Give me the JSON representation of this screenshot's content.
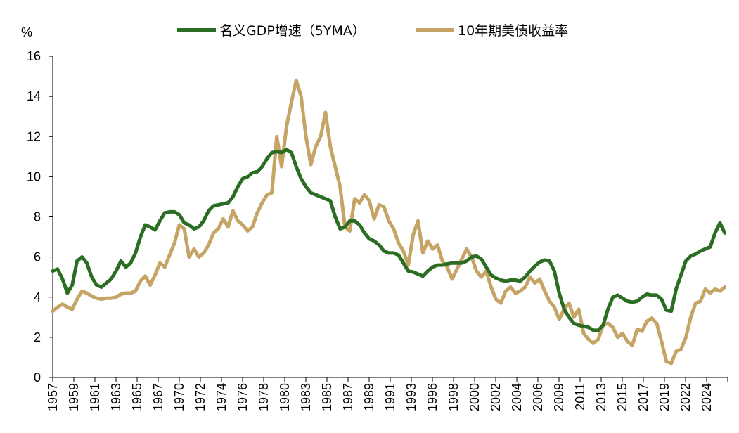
{
  "chart_data": {
    "type": "line",
    "y_unit": "%",
    "ylim": [
      0,
      16
    ],
    "y_ticks": [
      0,
      2,
      4,
      6,
      8,
      10,
      12,
      14,
      16
    ],
    "xlim": [
      1957,
      2026.3
    ],
    "x_tick_labels": [
      "1957",
      "1959",
      "1961",
      "1963",
      "1965",
      "1967",
      "1970",
      "1972",
      "1974",
      "1976",
      "1978",
      "1980",
      "1983",
      "1985",
      "1987",
      "1989",
      "1991",
      "1993",
      "1996",
      "1998",
      "2000",
      "2002",
      "2004",
      "2006",
      "2009",
      "2011",
      "2013",
      "2015",
      "2017",
      "2019",
      "2022",
      "2024"
    ],
    "grid": false,
    "legend_position": "top",
    "series": [
      {
        "name": "名义GDP增速（5YMA）",
        "color": "#2b6e23",
        "points": [
          [
            1957,
            5.3
          ],
          [
            1957.5,
            5.4
          ],
          [
            1958,
            4.9
          ],
          [
            1958.5,
            4.2
          ],
          [
            1959,
            4.6
          ],
          [
            1959.5,
            5.8
          ],
          [
            1960,
            6.0
          ],
          [
            1960.5,
            5.7
          ],
          [
            1961,
            5.0
          ],
          [
            1961.5,
            4.6
          ],
          [
            1962,
            4.5
          ],
          [
            1962.5,
            4.7
          ],
          [
            1963,
            4.9
          ],
          [
            1963.5,
            5.3
          ],
          [
            1964,
            5.8
          ],
          [
            1964.5,
            5.5
          ],
          [
            1965,
            5.7
          ],
          [
            1965.5,
            6.2
          ],
          [
            1966,
            7.0
          ],
          [
            1966.5,
            7.6
          ],
          [
            1967,
            7.5
          ],
          [
            1967.5,
            7.35
          ],
          [
            1968,
            7.8
          ],
          [
            1968.5,
            8.2
          ],
          [
            1969,
            8.25
          ],
          [
            1969.5,
            8.25
          ],
          [
            1970,
            8.1
          ],
          [
            1970.5,
            7.7
          ],
          [
            1971,
            7.6
          ],
          [
            1971.5,
            7.4
          ],
          [
            1972,
            7.5
          ],
          [
            1972.5,
            7.8
          ],
          [
            1973,
            8.3
          ],
          [
            1973.5,
            8.55
          ],
          [
            1974,
            8.6
          ],
          [
            1974.5,
            8.65
          ],
          [
            1975,
            8.7
          ],
          [
            1975.5,
            9.0
          ],
          [
            1976,
            9.5
          ],
          [
            1976.5,
            9.9
          ],
          [
            1977,
            10.0
          ],
          [
            1977.5,
            10.2
          ],
          [
            1978,
            10.25
          ],
          [
            1978.5,
            10.5
          ],
          [
            1979,
            10.9
          ],
          [
            1979.5,
            11.2
          ],
          [
            1980,
            11.25
          ],
          [
            1980.5,
            11.2
          ],
          [
            1981,
            11.35
          ],
          [
            1981.5,
            11.2
          ],
          [
            1982,
            10.5
          ],
          [
            1982.5,
            9.9
          ],
          [
            1983,
            9.5
          ],
          [
            1983.5,
            9.2
          ],
          [
            1984,
            9.1
          ],
          [
            1984.5,
            9.0
          ],
          [
            1985,
            8.9
          ],
          [
            1985.5,
            8.8
          ],
          [
            1986,
            8.0
          ],
          [
            1986.5,
            7.4
          ],
          [
            1987,
            7.5
          ],
          [
            1987.5,
            7.8
          ],
          [
            1988,
            7.8
          ],
          [
            1988.5,
            7.6
          ],
          [
            1989,
            7.2
          ],
          [
            1989.5,
            6.9
          ],
          [
            1990,
            6.8
          ],
          [
            1990.5,
            6.6
          ],
          [
            1991,
            6.3
          ],
          [
            1991.5,
            6.2
          ],
          [
            1992,
            6.2
          ],
          [
            1992.5,
            6.1
          ],
          [
            1993,
            5.7
          ],
          [
            1993.5,
            5.3
          ],
          [
            1994,
            5.25
          ],
          [
            1994.5,
            5.15
          ],
          [
            1995,
            5.05
          ],
          [
            1995.5,
            5.3
          ],
          [
            1996,
            5.5
          ],
          [
            1996.5,
            5.6
          ],
          [
            1997,
            5.6
          ],
          [
            1997.5,
            5.65
          ],
          [
            1998,
            5.7
          ],
          [
            1998.5,
            5.7
          ],
          [
            1999,
            5.7
          ],
          [
            1999.5,
            5.8
          ],
          [
            2000,
            6.0
          ],
          [
            2000.5,
            6.05
          ],
          [
            2001,
            5.9
          ],
          [
            2001.5,
            5.5
          ],
          [
            2002,
            5.1
          ],
          [
            2002.5,
            4.95
          ],
          [
            2003,
            4.85
          ],
          [
            2003.5,
            4.8
          ],
          [
            2004,
            4.85
          ],
          [
            2004.5,
            4.85
          ],
          [
            2005,
            4.8
          ],
          [
            2005.5,
            5.0
          ],
          [
            2006,
            5.3
          ],
          [
            2006.5,
            5.55
          ],
          [
            2007,
            5.75
          ],
          [
            2007.5,
            5.85
          ],
          [
            2008,
            5.8
          ],
          [
            2008.5,
            5.3
          ],
          [
            2009,
            4.2
          ],
          [
            2009.5,
            3.4
          ],
          [
            2010,
            3.0
          ],
          [
            2010.5,
            2.7
          ],
          [
            2011,
            2.6
          ],
          [
            2011.5,
            2.55
          ],
          [
            2012,
            2.5
          ],
          [
            2012.5,
            2.35
          ],
          [
            2013,
            2.35
          ],
          [
            2013.5,
            2.6
          ],
          [
            2014,
            3.4
          ],
          [
            2014.5,
            4.0
          ],
          [
            2015,
            4.1
          ],
          [
            2015.5,
            3.95
          ],
          [
            2016,
            3.8
          ],
          [
            2016.5,
            3.75
          ],
          [
            2017,
            3.8
          ],
          [
            2017.5,
            4.0
          ],
          [
            2018,
            4.15
          ],
          [
            2018.5,
            4.1
          ],
          [
            2019,
            4.1
          ],
          [
            2019.5,
            3.9
          ],
          [
            2020,
            3.35
          ],
          [
            2020.5,
            3.3
          ],
          [
            2021,
            4.4
          ],
          [
            2021.5,
            5.1
          ],
          [
            2022,
            5.8
          ],
          [
            2022.5,
            6.05
          ],
          [
            2023,
            6.15
          ],
          [
            2023.5,
            6.3
          ],
          [
            2024,
            6.4
          ],
          [
            2024.5,
            6.5
          ],
          [
            2025,
            7.2
          ],
          [
            2025.5,
            7.7
          ],
          [
            2026,
            7.2
          ]
        ]
      },
      {
        "name": "10年期美债收益率",
        "color": "#c5a466",
        "points": [
          [
            1957,
            3.3
          ],
          [
            1957.5,
            3.5
          ],
          [
            1958,
            3.65
          ],
          [
            1958.5,
            3.5
          ],
          [
            1959,
            3.4
          ],
          [
            1959.5,
            3.9
          ],
          [
            1960,
            4.3
          ],
          [
            1960.5,
            4.2
          ],
          [
            1961,
            4.05
          ],
          [
            1961.5,
            3.95
          ],
          [
            1962,
            3.9
          ],
          [
            1962.5,
            3.95
          ],
          [
            1963,
            3.95
          ],
          [
            1963.5,
            4.0
          ],
          [
            1964,
            4.15
          ],
          [
            1964.5,
            4.2
          ],
          [
            1965,
            4.2
          ],
          [
            1965.5,
            4.3
          ],
          [
            1966,
            4.8
          ],
          [
            1966.5,
            5.05
          ],
          [
            1967,
            4.6
          ],
          [
            1967.5,
            5.1
          ],
          [
            1968,
            5.7
          ],
          [
            1968.5,
            5.5
          ],
          [
            1969,
            6.1
          ],
          [
            1969.5,
            6.7
          ],
          [
            1970,
            7.6
          ],
          [
            1970.5,
            7.4
          ],
          [
            1971,
            6.0
          ],
          [
            1971.5,
            6.4
          ],
          [
            1972,
            6.0
          ],
          [
            1972.5,
            6.2
          ],
          [
            1973,
            6.6
          ],
          [
            1973.5,
            7.2
          ],
          [
            1974,
            7.4
          ],
          [
            1974.5,
            7.9
          ],
          [
            1975,
            7.5
          ],
          [
            1975.5,
            8.3
          ],
          [
            1976,
            7.8
          ],
          [
            1976.5,
            7.6
          ],
          [
            1977,
            7.3
          ],
          [
            1977.5,
            7.5
          ],
          [
            1978,
            8.2
          ],
          [
            1978.5,
            8.7
          ],
          [
            1979,
            9.1
          ],
          [
            1979.5,
            9.2
          ],
          [
            1980,
            12.0
          ],
          [
            1980.5,
            10.5
          ],
          [
            1981,
            12.5
          ],
          [
            1981.5,
            13.7
          ],
          [
            1982,
            14.8
          ],
          [
            1982.5,
            14.0
          ],
          [
            1983,
            12.0
          ],
          [
            1983.5,
            10.6
          ],
          [
            1984,
            11.5
          ],
          [
            1984.5,
            12.0
          ],
          [
            1985,
            13.2
          ],
          [
            1985.5,
            11.5
          ],
          [
            1986,
            10.5
          ],
          [
            1986.5,
            9.5
          ],
          [
            1987,
            7.5
          ],
          [
            1987.5,
            7.3
          ],
          [
            1988,
            8.9
          ],
          [
            1988.5,
            8.7
          ],
          [
            1989,
            9.1
          ],
          [
            1989.5,
            8.8
          ],
          [
            1990,
            7.9
          ],
          [
            1990.5,
            8.6
          ],
          [
            1991,
            8.5
          ],
          [
            1991.5,
            7.8
          ],
          [
            1992,
            7.4
          ],
          [
            1992.5,
            6.7
          ],
          [
            1993,
            6.3
          ],
          [
            1993.5,
            5.6
          ],
          [
            1994,
            7.1
          ],
          [
            1994.5,
            7.8
          ],
          [
            1995,
            6.2
          ],
          [
            1995.5,
            6.8
          ],
          [
            1996,
            6.4
          ],
          [
            1996.5,
            6.6
          ],
          [
            1997,
            5.8
          ],
          [
            1997.5,
            5.5
          ],
          [
            1998,
            4.9
          ],
          [
            1998.5,
            5.4
          ],
          [
            1999,
            5.9
          ],
          [
            1999.5,
            6.4
          ],
          [
            2000,
            6.0
          ],
          [
            2000.5,
            5.3
          ],
          [
            2001,
            5.0
          ],
          [
            2001.5,
            5.3
          ],
          [
            2002,
            4.5
          ],
          [
            2002.5,
            3.9
          ],
          [
            2003,
            3.7
          ],
          [
            2003.5,
            4.3
          ],
          [
            2004,
            4.5
          ],
          [
            2004.5,
            4.2
          ],
          [
            2005,
            4.3
          ],
          [
            2005.5,
            4.5
          ],
          [
            2006,
            5.0
          ],
          [
            2006.5,
            4.7
          ],
          [
            2007,
            4.9
          ],
          [
            2007.5,
            4.3
          ],
          [
            2008,
            3.8
          ],
          [
            2008.5,
            3.5
          ],
          [
            2009,
            2.9
          ],
          [
            2009.5,
            3.4
          ],
          [
            2010,
            3.7
          ],
          [
            2010.5,
            3.0
          ],
          [
            2011,
            3.4
          ],
          [
            2011.5,
            2.2
          ],
          [
            2012,
            1.9
          ],
          [
            2012.5,
            1.7
          ],
          [
            2013,
            1.9
          ],
          [
            2013.5,
            2.6
          ],
          [
            2014,
            2.7
          ],
          [
            2014.5,
            2.5
          ],
          [
            2015,
            2.0
          ],
          [
            2015.5,
            2.2
          ],
          [
            2016,
            1.8
          ],
          [
            2016.5,
            1.6
          ],
          [
            2017,
            2.4
          ],
          [
            2017.5,
            2.3
          ],
          [
            2018,
            2.8
          ],
          [
            2018.5,
            2.95
          ],
          [
            2019,
            2.7
          ],
          [
            2019.5,
            1.8
          ],
          [
            2020,
            0.8
          ],
          [
            2020.5,
            0.7
          ],
          [
            2021,
            1.3
          ],
          [
            2021.5,
            1.4
          ],
          [
            2022,
            2.0
          ],
          [
            2022.5,
            3.0
          ],
          [
            2023,
            3.7
          ],
          [
            2023.5,
            3.8
          ],
          [
            2024,
            4.4
          ],
          [
            2024.5,
            4.2
          ],
          [
            2025,
            4.4
          ],
          [
            2025.5,
            4.3
          ],
          [
            2026,
            4.5
          ]
        ]
      }
    ]
  }
}
